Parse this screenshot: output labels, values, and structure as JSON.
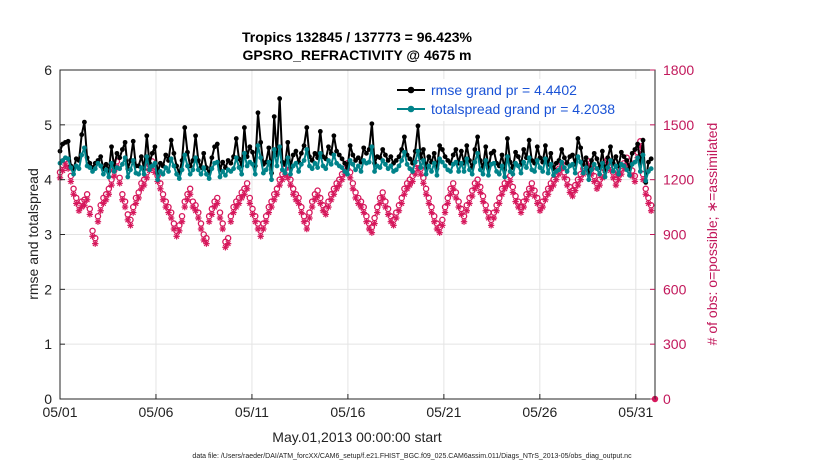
{
  "chart_data": {
    "type": "line",
    "title_line1": "Tropics 132845 / 137773 = 96.423%",
    "title_line2": "GPSRO_REFRACTIVITY @ 4675 m",
    "xlabel": "May.01,2013 00:00:00 start",
    "ylabel": "rmse and totalspread",
    "ylabel_right": "# of obs: o=possible; ∗=assimilated",
    "footer": "data file: /Users/raeder/DAI/ATM_forcXX/CAM6_setup/f.e21.FHIST_BGC.f09_025.CAM6assim.011/Diags_NTrS_2013-05/obs_diag_output.nc",
    "xlim": [
      1,
      32
    ],
    "ylim": [
      0,
      6
    ],
    "ylim_right": [
      0,
      1800
    ],
    "x_ticks": [
      1,
      6,
      11,
      16,
      21,
      26,
      31
    ],
    "x_tick_labels": [
      "05/01",
      "05/06",
      "05/11",
      "05/16",
      "05/21",
      "05/26",
      "05/31"
    ],
    "y_ticks": [
      0,
      1,
      2,
      3,
      4,
      5,
      6
    ],
    "y_tick_labels": [
      "0",
      "1",
      "2",
      "3",
      "4",
      "5",
      "6"
    ],
    "y_ticks_right": [
      0,
      300,
      600,
      900,
      1200,
      1500,
      1800
    ],
    "y_tick_labels_right": [
      "0",
      "300",
      "600",
      "900",
      "1200",
      "1500",
      "1800"
    ],
    "grid": true,
    "legend_position": "top-right",
    "colors": {
      "rmse": "#000000",
      "spread": "#00838a",
      "obs": "#d6185c",
      "legend_text": "#1a53d6",
      "right_axis": "#c2185b",
      "grid": "#e4e4e4"
    },
    "series": [
      {
        "name": "rmse grand pr = 4.4402",
        "color": "#000000",
        "values": [
          4.52,
          4.65,
          4.68,
          4.7,
          4.25,
          4.2,
          4.38,
          4.35,
          4.82,
          5.05,
          4.4,
          4.3,
          4.22,
          4.3,
          4.35,
          4.42,
          4.2,
          4.28,
          4.15,
          4.6,
          4.22,
          4.48,
          4.4,
          4.55,
          4.68,
          4.2,
          4.35,
          4.7,
          4.25,
          4.25,
          4.42,
          4.2,
          4.8,
          4.3,
          4.48,
          4.6,
          4.12,
          4.3,
          4.25,
          4.45,
          4.35,
          4.72,
          4.48,
          4.25,
          4.12,
          4.35,
          4.95,
          4.5,
          4.25,
          4.35,
          4.8,
          4.35,
          4.22,
          4.48,
          4.22,
          4.12,
          4.4,
          4.6,
          4.65,
          4.18,
          4.32,
          4.22,
          4.35,
          4.3,
          4.42,
          4.75,
          4.38,
          4.25,
          4.95,
          4.42,
          4.6,
          4.5,
          4.25,
          5.22,
          4.68,
          4.28,
          4.32,
          4.58,
          4.12,
          5.15,
          4.45,
          5.48,
          4.32,
          4.28,
          4.68,
          4.22,
          4.45,
          4.52,
          4.32,
          4.48,
          4.62,
          4.95,
          4.42,
          4.35,
          4.48,
          4.4,
          4.88,
          4.42,
          4.38,
          4.6,
          4.48,
          4.8,
          4.52,
          4.45,
          4.38,
          4.3,
          4.22,
          4.62,
          4.45,
          4.35,
          4.4,
          4.32,
          4.58,
          4.48,
          4.55,
          5.02,
          4.3,
          4.42,
          4.4,
          4.55,
          4.45,
          4.35,
          4.42,
          4.3,
          4.35,
          4.42,
          4.55,
          4.78,
          4.45,
          4.38,
          4.3,
          4.52,
          4.98,
          4.4,
          4.55,
          4.22,
          4.42,
          4.32,
          4.48,
          4.2,
          4.62,
          4.55,
          4.42,
          4.35,
          4.3,
          4.45,
          4.55,
          4.3,
          4.52,
          4.3,
          4.62,
          4.35,
          4.22,
          4.55,
          4.78,
          4.35,
          4.22,
          4.6,
          4.2,
          4.48,
          4.52,
          4.3,
          4.25,
          4.45,
          4.18,
          4.75,
          4.32,
          4.22,
          4.5,
          4.42,
          4.28,
          4.55,
          4.4,
          4.72,
          4.35,
          4.3,
          4.6,
          4.4,
          4.32,
          4.62,
          4.28,
          4.48,
          4.2,
          4.3,
          4.35,
          4.55,
          4.4,
          4.3,
          4.42,
          4.45,
          4.28,
          4.75,
          4.58,
          4.28,
          4.4,
          4.1,
          4.35,
          4.48,
          4.38,
          4.22,
          4.52,
          4.15,
          4.4,
          4.6,
          4.3,
          4.42,
          4.25,
          4.5,
          4.42,
          4.35,
          4.2,
          4.48,
          4.55,
          4.65,
          4.3,
          4.72,
          3.95,
          4.32,
          4.38
        ]
      },
      {
        "name": "totalspread grand pr = 4.2038",
        "color": "#00838a",
        "values": [
          4.3,
          4.35,
          4.4,
          4.38,
          4.22,
          4.1,
          4.25,
          4.2,
          4.45,
          4.58,
          4.25,
          4.22,
          4.15,
          4.2,
          4.3,
          4.25,
          4.1,
          4.18,
          4.05,
          4.3,
          4.15,
          4.22,
          4.2,
          4.28,
          4.4,
          4.05,
          4.18,
          4.35,
          4.12,
          4.1,
          4.22,
          4.1,
          4.42,
          4.18,
          4.25,
          4.3,
          4.0,
          4.15,
          4.1,
          4.22,
          4.15,
          4.38,
          4.25,
          4.1,
          4.02,
          4.18,
          4.45,
          4.25,
          4.1,
          4.18,
          4.4,
          4.18,
          4.1,
          4.22,
          4.1,
          4.02,
          4.2,
          4.3,
          4.32,
          4.05,
          4.15,
          4.08,
          4.18,
          4.15,
          4.2,
          4.4,
          4.22,
          4.1,
          4.48,
          4.25,
          4.32,
          4.28,
          4.1,
          4.62,
          4.4,
          4.12,
          4.18,
          4.32,
          4.0,
          4.55,
          4.25,
          4.6,
          4.18,
          4.12,
          4.4,
          4.1,
          4.25,
          4.3,
          4.15,
          4.28,
          4.35,
          4.55,
          4.25,
          4.2,
          4.3,
          4.22,
          4.48,
          4.25,
          4.2,
          4.35,
          4.28,
          4.45,
          4.3,
          4.25,
          4.22,
          4.15,
          4.1,
          4.35,
          4.28,
          4.18,
          4.25,
          4.15,
          4.35,
          4.3,
          4.32,
          4.6,
          4.15,
          4.25,
          4.22,
          4.35,
          4.28,
          4.2,
          4.25,
          4.15,
          4.18,
          4.25,
          4.35,
          4.5,
          4.28,
          4.2,
          4.15,
          4.32,
          4.52,
          4.22,
          4.35,
          4.1,
          4.25,
          4.15,
          4.3,
          4.08,
          4.38,
          4.32,
          4.25,
          4.18,
          4.15,
          4.28,
          4.32,
          4.15,
          4.3,
          4.15,
          4.38,
          4.18,
          4.1,
          4.32,
          4.48,
          4.18,
          4.1,
          4.35,
          4.08,
          4.28,
          4.3,
          4.15,
          4.1,
          4.25,
          4.05,
          4.42,
          4.15,
          4.1,
          4.3,
          4.25,
          4.12,
          4.32,
          4.22,
          4.4,
          4.18,
          4.15,
          4.35,
          4.22,
          4.15,
          4.38,
          4.12,
          4.28,
          4.08,
          4.15,
          4.18,
          4.32,
          4.22,
          4.15,
          4.25,
          4.28,
          4.12,
          4.42,
          4.32,
          4.12,
          4.22,
          4.0,
          4.18,
          4.28,
          4.2,
          4.1,
          4.3,
          4.05,
          4.22,
          4.35,
          4.15,
          4.25,
          4.1,
          4.28,
          4.25,
          4.18,
          4.08,
          4.28,
          4.32,
          4.4,
          4.15,
          4.45,
          3.98,
          4.15,
          4.2
        ]
      },
      {
        "name": "possible",
        "color": "#d6185c",
        "values": [
          1240,
          1280,
          1310,
          1290,
          1220,
          1150,
          1100,
          1060,
          1080,
          1090,
          1120,
          1040,
          920,
          880,
          1000,
          1060,
          1100,
          1120,
          1150,
          1200,
          1250,
          1300,
          1210,
          1120,
          1080,
          1010,
          980,
          1050,
          1100,
          1130,
          1180,
          1200,
          1240,
          1280,
          1300,
          1270,
          1220,
          1180,
          1120,
          1080,
          1050,
          1020,
          960,
          920,
          950,
          1000,
          1080,
          1120,
          1150,
          1080,
          1060,
          1020,
          960,
          900,
          880,
          1000,
          1040,
          1080,
          1100,
          1020,
          960,
          860,
          880,
          1000,
          1050,
          1080,
          1100,
          1130,
          1150,
          1180,
          1100,
          1040,
          1000,
          960,
          920,
          960,
          1000,
          1050,
          1080,
          1120,
          1150,
          1200,
          1230,
          1260,
          1240,
          1200,
          1150,
          1120,
          1100,
          1050,
          1000,
          960,
          1020,
          1080,
          1120,
          1140,
          1100,
          1060,
          1040,
          1080,
          1120,
          1150,
          1180,
          1200,
          1230,
          1260,
          1290,
          1240,
          1180,
          1130,
          1100,
          1080,
          1050,
          1000,
          960,
          940,
          990,
          1050,
          1100,
          1130,
          1080,
          1040,
          1000,
          980,
          1020,
          1060,
          1100,
          1150,
          1180,
          1200,
          1220,
          1260,
          1290,
          1260,
          1210,
          1150,
          1100,
          1050,
          1000,
          960,
          940,
          980,
          1050,
          1100,
          1150,
          1180,
          1130,
          1080,
          1040,
          1000,
          1060,
          1100,
          1140,
          1180,
          1200,
          1160,
          1110,
          1060,
          1020,
          980,
          1020,
          1060,
          1100,
          1150,
          1180,
          1200,
          1220,
          1160,
          1110,
          1080,
          1050,
          1080,
          1120,
          1150,
          1180,
          1140,
          1100,
          1060,
          1080,
          1120,
          1150,
          1180,
          1200,
          1230,
          1260,
          1290,
          1240,
          1200,
          1160,
          1140,
          1170,
          1200,
          1230,
          1260,
          1290,
          1300,
          1260,
          1220,
          1180,
          1200,
          1240,
          1280,
          1310,
          1280,
          1240,
          1200,
          1230,
          1260,
          1290,
          1320,
          1300,
          1250,
          1220,
          1350,
          1410,
          1230,
          1150,
          1100,
          1060
        ]
      },
      {
        "name": "assimilated",
        "color": "#d6185c",
        "values": [
          1210,
          1250,
          1280,
          1260,
          1190,
          1120,
          1070,
          1030,
          1050,
          1060,
          1090,
          1010,
          890,
          850,
          970,
          1030,
          1070,
          1090,
          1120,
          1170,
          1220,
          1270,
          1180,
          1090,
          1050,
          980,
          950,
          1020,
          1070,
          1100,
          1150,
          1170,
          1210,
          1250,
          1270,
          1240,
          1190,
          1150,
          1090,
          1050,
          1020,
          990,
          930,
          890,
          920,
          970,
          1050,
          1090,
          1120,
          1050,
          1030,
          990,
          930,
          870,
          850,
          970,
          1010,
          1050,
          1070,
          990,
          930,
          830,
          850,
          970,
          1020,
          1050,
          1070,
          1100,
          1120,
          1150,
          1070,
          1010,
          970,
          930,
          890,
          930,
          970,
          1020,
          1050,
          1090,
          1120,
          1170,
          1200,
          1230,
          1210,
          1170,
          1120,
          1090,
          1070,
          1020,
          970,
          930,
          990,
          1050,
          1090,
          1110,
          1070,
          1030,
          1010,
          1050,
          1090,
          1120,
          1150,
          1170,
          1200,
          1230,
          1260,
          1210,
          1150,
          1100,
          1070,
          1050,
          1020,
          970,
          930,
          910,
          960,
          1020,
          1070,
          1100,
          1050,
          1010,
          970,
          950,
          990,
          1030,
          1070,
          1120,
          1150,
          1170,
          1190,
          1230,
          1260,
          1230,
          1180,
          1120,
          1070,
          1020,
          970,
          930,
          910,
          950,
          1020,
          1070,
          1120,
          1150,
          1100,
          1050,
          1010,
          970,
          1030,
          1070,
          1110,
          1150,
          1170,
          1130,
          1080,
          1030,
          990,
          950,
          990,
          1030,
          1070,
          1120,
          1150,
          1170,
          1190,
          1130,
          1080,
          1050,
          1020,
          1050,
          1090,
          1120,
          1150,
          1110,
          1070,
          1030,
          1050,
          1090,
          1120,
          1150,
          1170,
          1200,
          1230,
          1260,
          1210,
          1170,
          1130,
          1110,
          1140,
          1170,
          1200,
          1230,
          1260,
          1270,
          1230,
          1190,
          1150,
          1170,
          1210,
          1250,
          1280,
          1250,
          1210,
          1170,
          1200,
          1230,
          1260,
          1290,
          1270,
          1220,
          1190,
          1320,
          1380,
          1200,
          1120,
          1070,
          1030
        ]
      }
    ]
  }
}
